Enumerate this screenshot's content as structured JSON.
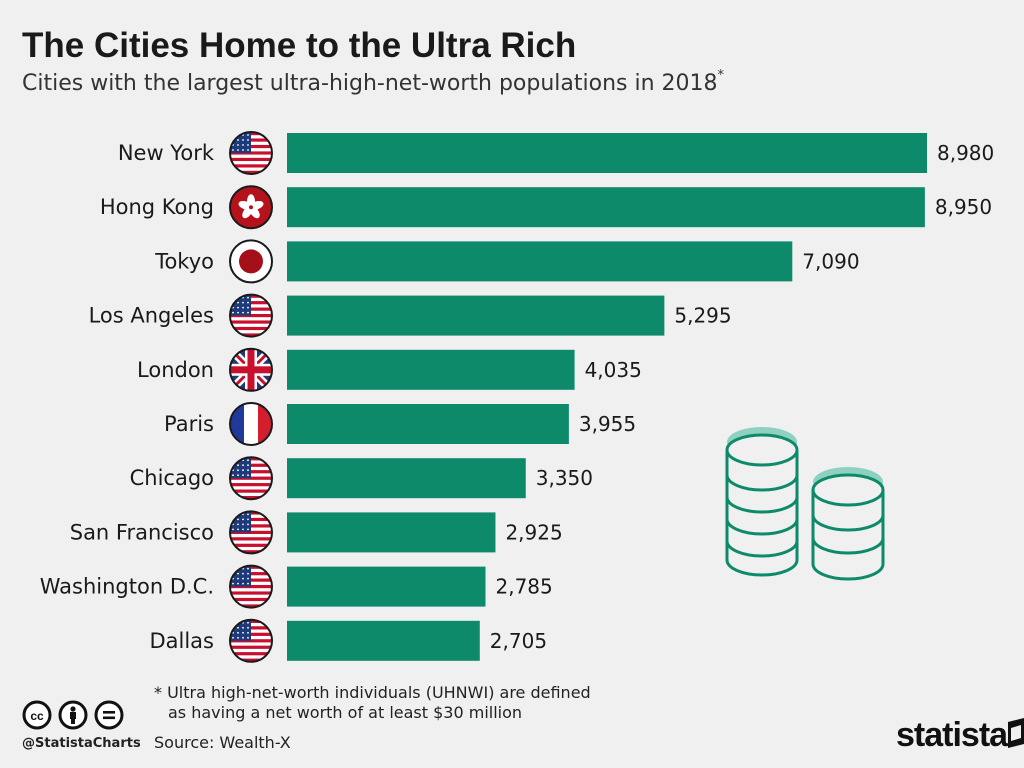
{
  "header": {
    "title": "The Cities Home to the Ultra Rich",
    "subtitle": "Cities with the largest ultra-high-net-worth populations in 2018",
    "subtitle_mark": "*"
  },
  "colors": {
    "bar": "#0c8a6a",
    "background": "#f0f0f0",
    "coin_outline": "#0c8a6a",
    "coin_top": "#8fd1c1"
  },
  "chart_data": {
    "type": "bar",
    "orientation": "horizontal",
    "categories": [
      "New York",
      "Hong Kong",
      "Tokyo",
      "Los Angeles",
      "London",
      "Paris",
      "Chicago",
      "San Francisco",
      "Washington D.C.",
      "Dallas"
    ],
    "values": [
      8980,
      8950,
      7090,
      5295,
      4035,
      3955,
      3350,
      2925,
      2785,
      2705
    ],
    "value_labels": [
      "8,980",
      "8,950",
      "7,090",
      "5,295",
      "4,035",
      "3,955",
      "3,350",
      "2,925",
      "2,785",
      "2,705"
    ],
    "flags": [
      "us-flag-icon",
      "hong-kong-flag-icon",
      "japan-flag-icon",
      "us-flag-icon",
      "uk-flag-icon",
      "france-flag-icon",
      "us-flag-icon",
      "us-flag-icon",
      "us-flag-icon",
      "us-flag-icon"
    ],
    "xlim": [
      0,
      8980
    ],
    "grid": false,
    "legend": "none"
  },
  "footer": {
    "footnote_line1": "* Ultra high-net-worth individuals (UHNWI) are defined",
    "footnote_line2": "as having a net worth of at least $30 million",
    "source": "Source: Wealth-X",
    "handle": "@StatistaCharts",
    "brand": "statista"
  },
  "icons": {
    "license": [
      "creative-commons-icon",
      "attribution-icon",
      "no-derivatives-icon"
    ],
    "decoration": "coin-stacks-icon"
  }
}
